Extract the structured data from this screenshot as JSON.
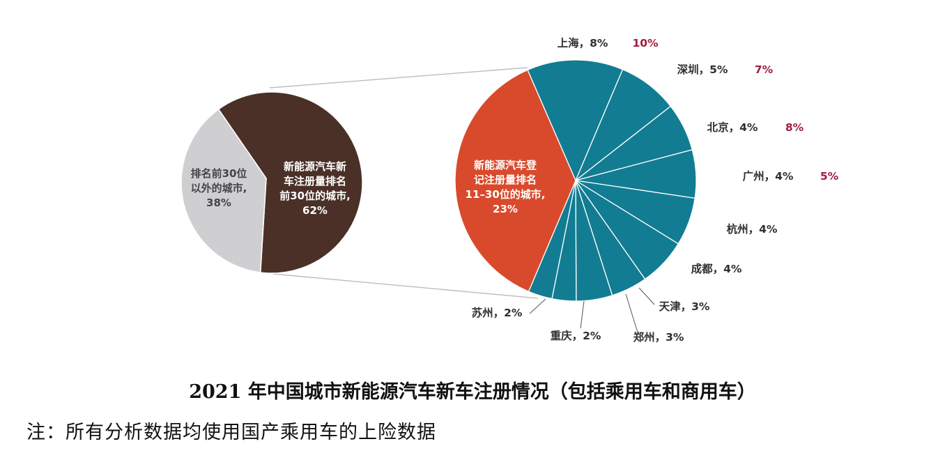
{
  "figure": {
    "caption": "2021 年中国城市新能源汽车新车注册情况（包括乘用车和商用车）",
    "note": "注：所有分析数据均使用国产乘用车的上险数据"
  },
  "chart_data": [
    {
      "type": "pie",
      "slices": [
        {
          "lines": [
            "新能源汽车新",
            "车注册量排名",
            "前30位的城市,",
            "62%"
          ],
          "value": 62,
          "color": "#4a3027"
        },
        {
          "lines": [
            "排名前30位",
            "以外的城市,",
            "38%"
          ],
          "value": 38,
          "color": "#cfcfd2"
        }
      ]
    },
    {
      "type": "pie",
      "slices": [
        {
          "label": "上海，8%",
          "value": 8,
          "alt": "10%",
          "color": "#127c93"
        },
        {
          "label": "深圳，5%",
          "value": 5,
          "alt": "7%",
          "color": "#127c93"
        },
        {
          "label": "北京，4%",
          "value": 4,
          "alt": "8%",
          "color": "#127c93"
        },
        {
          "label": "广州，4%",
          "value": 4,
          "alt": "5%",
          "color": "#127c93"
        },
        {
          "label": "杭州，4%",
          "value": 4,
          "color": "#127c93"
        },
        {
          "label": "成都，4%",
          "value": 4,
          "color": "#127c93"
        },
        {
          "label": "天津，3%",
          "value": 3,
          "color": "#127c93"
        },
        {
          "label": "郑州，3%",
          "value": 3,
          "color": "#127c93"
        },
        {
          "label": "重庆，2%",
          "value": 2,
          "color": "#127c93"
        },
        {
          "label": "苏州，2%",
          "value": 2,
          "color": "#127c93"
        },
        {
          "lines": [
            "新能源汽车登",
            "记注册量排名",
            "11–30位的城市,",
            "23%"
          ],
          "value": 23,
          "color": "#d94a2c"
        }
      ]
    }
  ],
  "colors": {
    "alt_value": "#a11d3f",
    "connector": "#bdbdbd",
    "slice_border": "#ffffff"
  }
}
